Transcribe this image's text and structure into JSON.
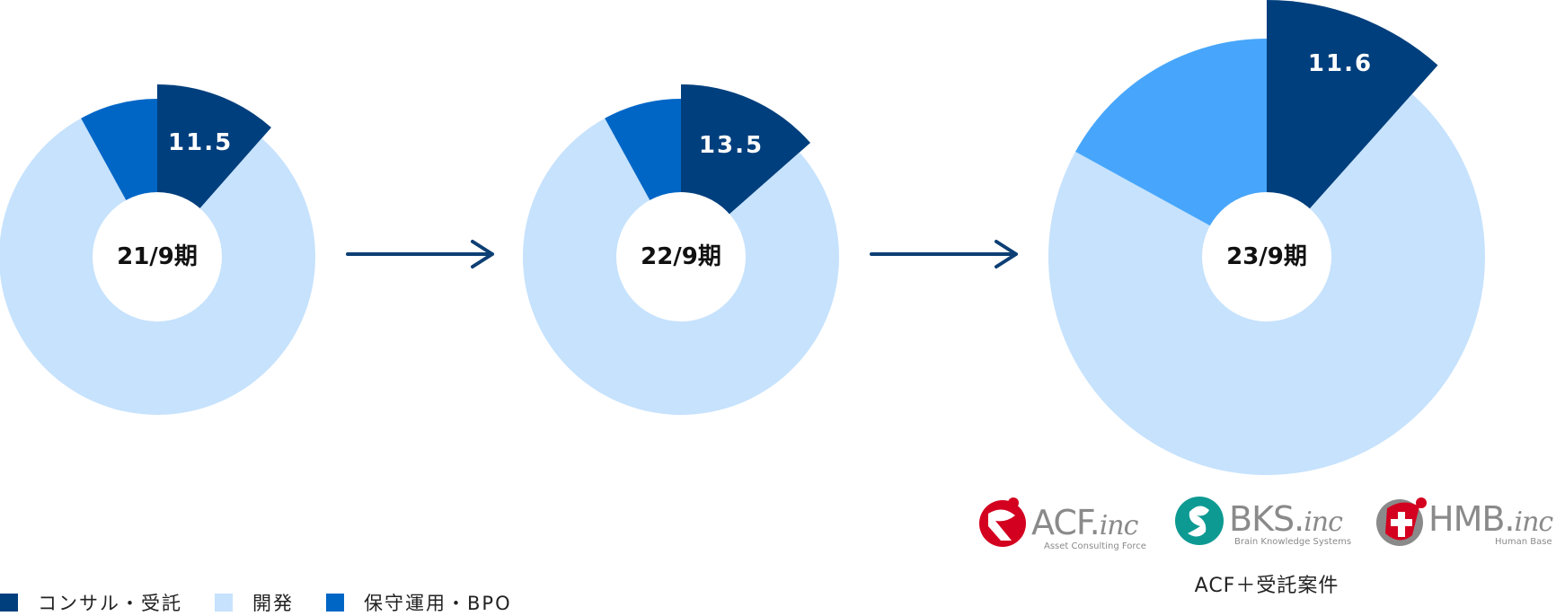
{
  "chart_data": [
    {
      "type": "pie",
      "center_label": "21/9期",
      "slices": [
        {
          "category": "コンサル・受託",
          "value": 11.5,
          "label": "11.5"
        },
        {
          "category": "開発",
          "value": 80.5
        },
        {
          "category": "保守運用・BPO",
          "value": 8.0
        }
      ]
    },
    {
      "type": "pie",
      "center_label": "22/9期",
      "slices": [
        {
          "category": "コンサル・受託",
          "value": 13.5,
          "label": "13.5"
        },
        {
          "category": "開発",
          "value": 78.5
        },
        {
          "category": "保守運用・BPO",
          "value": 8.0
        }
      ]
    },
    {
      "type": "pie",
      "center_label": "23/9期",
      "slices": [
        {
          "category": "コンサル・受託",
          "value": 11.6,
          "label": "11.6"
        },
        {
          "category": "開発",
          "value": 71.4
        },
        {
          "category": "ACF＋受託案件",
          "value": 17.0
        }
      ]
    }
  ],
  "legend": [
    {
      "label": "コンサル・受託",
      "color": "#003f7d"
    },
    {
      "label": "開発",
      "color": "#c6e2fd"
    },
    {
      "label": "保守運用・BPO",
      "color": "#0066c6"
    }
  ],
  "colors": {
    "consulting": "#003f7d",
    "development": "#c6e2fd",
    "maintenance": "#0066c6",
    "acf_contract": "#47a6fb",
    "arrow": "#0d3f74",
    "center": "#ffffff"
  },
  "logos": [
    {
      "name": "ACF",
      "text": "ACF.",
      "suffix": "inc",
      "sub": "Asset Consulting Force",
      "color": "#d4001f"
    },
    {
      "name": "BKS",
      "text": "BKS.",
      "suffix": "inc",
      "sub": "Brain Knowledge Systems",
      "color": "#0d9a93"
    },
    {
      "name": "HMB",
      "text": "HMB.",
      "suffix": "inc",
      "sub": "Human Base",
      "color": "#d4001f"
    }
  ],
  "caption": "ACF＋受託案件"
}
